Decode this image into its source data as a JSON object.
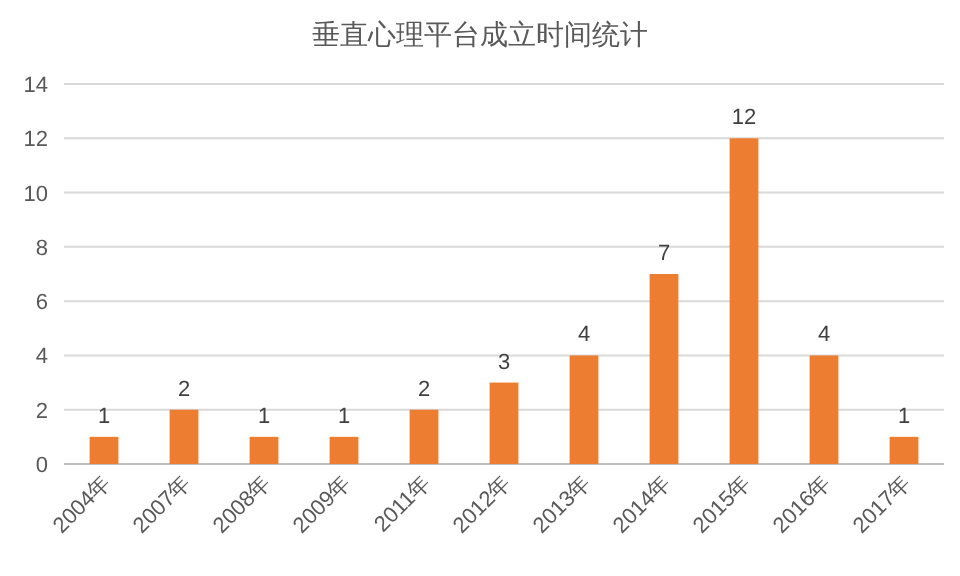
{
  "chart_data": {
    "type": "bar",
    "title": "垂直心理平台成立时间统计",
    "categories": [
      "2004年",
      "2007年",
      "2008年",
      "2009年",
      "2011年",
      "2012年",
      "2013年",
      "2014年",
      "2015年",
      "2016年",
      "2017年"
    ],
    "values": [
      1,
      2,
      1,
      1,
      2,
      3,
      4,
      7,
      12,
      4,
      1
    ],
    "color": "#ed7d31",
    "ylim": [
      0,
      14
    ],
    "yticks": [
      0,
      2,
      4,
      6,
      8,
      10,
      12,
      14
    ],
    "grid": "y",
    "data_labels": true
  }
}
